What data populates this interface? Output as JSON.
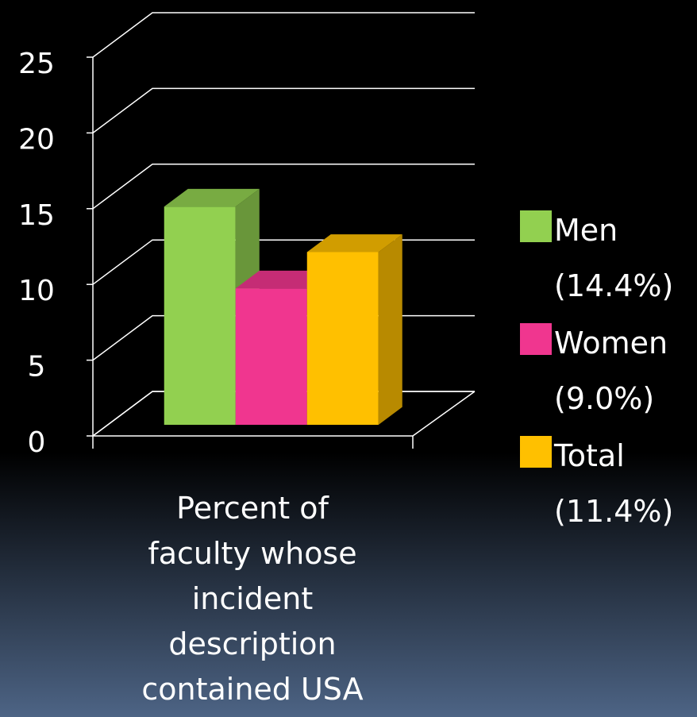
{
  "chart_data": {
    "type": "bar",
    "categories": [
      "Percent of faculty whose incident description contained USA"
    ],
    "series": [
      {
        "name": "Men (14.4%)",
        "color": "#92d050",
        "values": [
          14.4
        ]
      },
      {
        "name": "Women (9.0%)",
        "color": "#f0368f",
        "values": [
          9.0
        ]
      },
      {
        "name": "Total (11.4%)",
        "color": "#ffc000",
        "values": [
          11.4
        ]
      }
    ],
    "ylim": [
      0,
      25
    ],
    "yticks": [
      0,
      5,
      10,
      15,
      20,
      25
    ],
    "grid": true,
    "legend": "right"
  }
}
